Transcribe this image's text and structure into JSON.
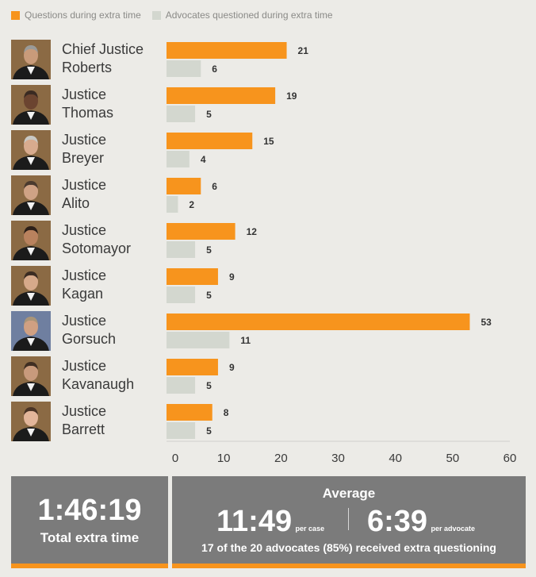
{
  "legend": {
    "questions": "Questions during extra time",
    "advocates": "Advocates questioned during extra time"
  },
  "colors": {
    "questions": "#f7941d",
    "advocates": "#d3d7cf",
    "panel": "#7b7b7b"
  },
  "justices": [
    {
      "line1": "Chief Justice",
      "line2": "Roberts",
      "photo": "justice-portrait"
    },
    {
      "line1": "Justice",
      "line2": "Thomas",
      "photo": "justice-portrait"
    },
    {
      "line1": "Justice",
      "line2": "Breyer",
      "photo": "justice-portrait"
    },
    {
      "line1": "Justice",
      "line2": "Alito",
      "photo": "justice-portrait"
    },
    {
      "line1": "Justice",
      "line2": "Sotomayor",
      "photo": "justice-portrait"
    },
    {
      "line1": "Justice",
      "line2": "Kagan",
      "photo": "justice-portrait"
    },
    {
      "line1": "Justice",
      "line2": "Gorsuch",
      "photo": "justice-portrait"
    },
    {
      "line1": "Justice",
      "line2": "Kavanaugh",
      "photo": "justice-portrait"
    },
    {
      "line1": "Justice",
      "line2": "Barrett",
      "photo": "justice-portrait"
    }
  ],
  "chart_data": {
    "type": "bar",
    "orientation": "horizontal",
    "categories": [
      "Chief Justice Roberts",
      "Justice Thomas",
      "Justice Breyer",
      "Justice Alito",
      "Justice Sotomayor",
      "Justice Kagan",
      "Justice Gorsuch",
      "Justice Kavanaugh",
      "Justice Barrett"
    ],
    "series": [
      {
        "name": "Questions during extra time",
        "values": [
          21,
          19,
          15,
          6,
          12,
          9,
          53,
          9,
          8
        ]
      },
      {
        "name": "Advocates questioned during extra time",
        "values": [
          6,
          5,
          4,
          2,
          5,
          5,
          11,
          5,
          5
        ]
      }
    ],
    "xlim": [
      0,
      60
    ],
    "ticks": [
      "0",
      "10",
      "20",
      "30",
      "40",
      "50",
      "60"
    ],
    "grid": false,
    "legend_position": "top-left"
  },
  "summary": {
    "total_value": "1:46:19",
    "total_label": "Total extra time",
    "average_title": "Average",
    "per_case_value": "11:49",
    "per_case_label": "per case",
    "per_advocate_value": "6:39",
    "per_advocate_label": "per advocate",
    "note": "17 of the 20 advocates (85%) received extra questioning"
  }
}
